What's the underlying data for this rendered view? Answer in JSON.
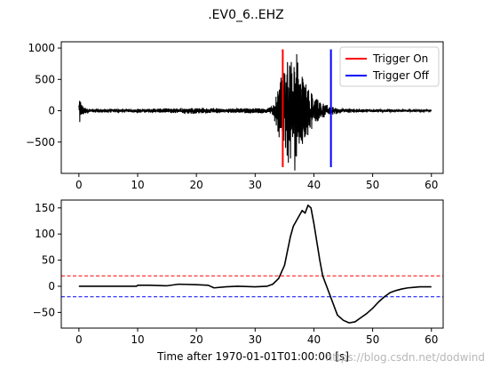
{
  "figure": {
    "title": ".EV0_6..EHZ",
    "watermark": "https://blog.csdn.net/dodwind"
  },
  "chart_data": [
    {
      "type": "line",
      "panel": "top",
      "description_hint": "Seismic waveform trace",
      "xlim": [
        -3,
        62
      ],
      "ylim": [
        -1000,
        1100
      ],
      "xticks": [
        0,
        10,
        20,
        30,
        40,
        50,
        60
      ],
      "yticks": [
        -500,
        0,
        500,
        1000
      ],
      "ytick_labels": [
        "−500",
        "0",
        "500",
        "1000"
      ],
      "trace_color": "#000000",
      "envelope": {
        "x": [
          0,
          0.3,
          0.6,
          1,
          2,
          5,
          10,
          15,
          20,
          25,
          30,
          32,
          33,
          33.5,
          34,
          34.5,
          35,
          35.5,
          36,
          36.5,
          37,
          37.5,
          38,
          38.5,
          39,
          39.5,
          40,
          41,
          42,
          43,
          44,
          46,
          50,
          55,
          60
        ],
        "amp": [
          280,
          130,
          70,
          40,
          25,
          25,
          25,
          30,
          40,
          28,
          35,
          30,
          80,
          200,
          380,
          520,
          620,
          650,
          760,
          680,
          800,
          550,
          480,
          400,
          320,
          260,
          200,
          120,
          80,
          55,
          40,
          28,
          20,
          15,
          12
        ]
      },
      "vlines": [
        {
          "name": "Trigger On",
          "x": 34.7,
          "ymin": -900,
          "ymax": 980,
          "color": "#ff0000"
        },
        {
          "name": "Trigger Off",
          "x": 42.9,
          "ymin": -900,
          "ymax": 980,
          "color": "#0000ff"
        }
      ],
      "legend": {
        "placement": "top-right",
        "entries": [
          "Trigger On",
          "Trigger Off"
        ]
      }
    },
    {
      "type": "line",
      "panel": "bottom",
      "description_hint": "Characteristic function",
      "xlim": [
        -3,
        62
      ],
      "ylim": [
        -80,
        165
      ],
      "xticks": [
        0,
        10,
        20,
        30,
        40,
        50,
        60
      ],
      "yticks": [
        -50,
        0,
        50,
        100,
        150
      ],
      "ytick_labels": [
        "−50",
        "0",
        "50",
        "100",
        "150"
      ],
      "xlabel": "Time after 1970-01-01T01:00:00 [s]",
      "series_color": "#000000",
      "x": [
        0,
        5,
        9.8,
        10,
        12,
        15,
        17,
        20,
        22,
        23,
        25,
        27,
        30,
        32,
        33,
        34,
        35,
        36,
        36.5,
        37,
        37.5,
        38,
        38.5,
        39,
        39.5,
        40,
        40.5,
        41,
        41.5,
        42,
        42.5,
        43,
        44,
        45,
        46,
        47,
        48,
        49,
        50,
        51,
        52,
        53,
        54,
        55,
        56,
        57,
        58,
        59,
        60
      ],
      "y": [
        0,
        0,
        0,
        2,
        2,
        1,
        4,
        3,
        2,
        -3,
        -1,
        0,
        -1,
        0,
        4,
        15,
        40,
        95,
        115,
        125,
        135,
        145,
        140,
        155,
        150,
        120,
        85,
        50,
        20,
        5,
        -10,
        -25,
        -55,
        -65,
        -70,
        -68,
        -60,
        -52,
        -42,
        -30,
        -20,
        -12,
        -8,
        -5,
        -3,
        -2,
        -1,
        -1,
        -1
      ],
      "hlines": [
        {
          "y": 20,
          "color": "#ff0000",
          "style": "dashed"
        },
        {
          "y": -20,
          "color": "#0000ff",
          "style": "dashed"
        }
      ]
    }
  ]
}
